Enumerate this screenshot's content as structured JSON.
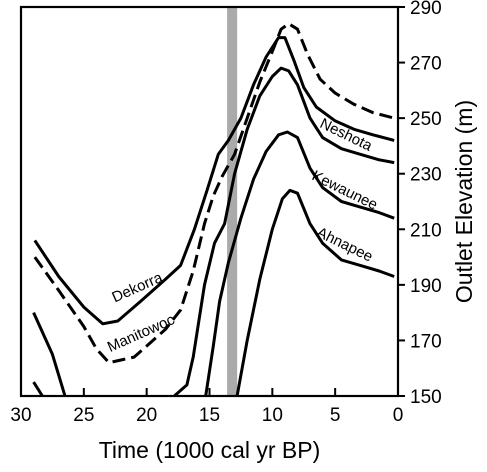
{
  "chart_data": {
    "type": "line",
    "xlabel": "Time (1000 cal yr BP)",
    "ylabel": "Outlet Elevation (m)",
    "xlim": [
      30,
      0
    ],
    "ylim": [
      150,
      290
    ],
    "xticks": [
      "30",
      "25",
      "20",
      "15",
      "10",
      "5",
      "0"
    ],
    "yticks": [
      "150",
      "170",
      "190",
      "210",
      "230",
      "250",
      "270",
      "290"
    ],
    "shaded_band": {
      "from": 13.6,
      "to": 12.8,
      "color": "#aaaaaa"
    },
    "series": [
      {
        "name": "Dekorra",
        "style": "solid",
        "points": [
          [
            28.9,
            206
          ],
          [
            27,
            193
          ],
          [
            25,
            182
          ],
          [
            23.5,
            176
          ],
          [
            22.3,
            177
          ],
          [
            20.5,
            184
          ],
          [
            18.5,
            192
          ],
          [
            17.3,
            197
          ],
          [
            16.2,
            210
          ],
          [
            15.2,
            224
          ],
          [
            14.3,
            237
          ],
          [
            13.5,
            242
          ],
          [
            12.5,
            250
          ],
          [
            11.5,
            262
          ],
          [
            10.5,
            272
          ],
          [
            9.5,
            279
          ],
          [
            9,
            279
          ],
          [
            8.3,
            271
          ],
          [
            7.5,
            261
          ],
          [
            6.5,
            254
          ],
          [
            5,
            249
          ],
          [
            3.5,
            246
          ],
          [
            2,
            244
          ],
          [
            0.3,
            242
          ]
        ]
      },
      {
        "name": "Manitowoc",
        "style": "dashed",
        "points": [
          [
            28.9,
            200
          ],
          [
            27,
            188
          ],
          [
            25,
            175
          ],
          [
            24,
            167
          ],
          [
            23,
            162
          ],
          [
            22,
            163
          ],
          [
            21,
            164
          ],
          [
            20,
            168
          ],
          [
            18.5,
            174
          ],
          [
            17.3,
            181
          ],
          [
            16.3,
            195
          ],
          [
            15.4,
            212
          ],
          [
            14.7,
            222
          ],
          [
            14,
            229
          ],
          [
            13,
            237
          ],
          [
            12,
            250
          ],
          [
            11,
            263
          ],
          [
            10,
            274
          ],
          [
            9.3,
            282
          ],
          [
            8.7,
            284
          ],
          [
            8,
            282
          ],
          [
            7.2,
            273
          ],
          [
            6.2,
            264
          ],
          [
            5,
            259
          ],
          [
            3.5,
            255
          ],
          [
            2,
            252
          ],
          [
            0.3,
            250
          ]
        ]
      },
      {
        "name": "Neshota",
        "style": "solid",
        "points": [
          [
            29,
            155
          ],
          [
            28.3,
            150
          ]
        ]
      },
      {
        "name": "",
        "style": "solid",
        "points": [
          [
            29,
            180
          ],
          [
            27.5,
            165
          ],
          [
            26.5,
            150
          ]
        ]
      },
      {
        "name": "",
        "style": "solid",
        "points": [
          [
            17.8,
            150
          ],
          [
            16.8,
            154
          ],
          [
            16.3,
            164
          ],
          [
            15.4,
            190
          ],
          [
            14.6,
            205
          ],
          [
            13.8,
            212
          ],
          [
            13,
            230
          ],
          [
            12,
            246
          ],
          [
            11,
            258
          ],
          [
            10,
            265
          ],
          [
            9.3,
            268
          ],
          [
            8.7,
            267
          ],
          [
            8,
            262
          ],
          [
            7,
            250
          ],
          [
            6,
            243
          ],
          [
            4.5,
            239
          ],
          [
            3,
            237
          ],
          [
            1.5,
            235
          ],
          [
            0.3,
            234
          ]
        ]
      },
      {
        "name": "Kewaunee",
        "style": "solid",
        "points": [
          [
            15.3,
            150
          ],
          [
            14.7,
            168
          ],
          [
            14.2,
            184
          ],
          [
            13.5,
            198
          ],
          [
            12.5,
            214
          ],
          [
            11.5,
            228
          ],
          [
            10.5,
            238
          ],
          [
            9.5,
            244
          ],
          [
            8.8,
            245
          ],
          [
            8,
            243
          ],
          [
            7,
            232
          ],
          [
            6,
            225
          ],
          [
            4.5,
            220
          ],
          [
            3,
            218
          ],
          [
            1.5,
            216
          ],
          [
            0.3,
            214
          ]
        ]
      },
      {
        "name": "Ahnapee",
        "style": "solid",
        "points": [
          [
            12.8,
            150
          ],
          [
            12,
            170
          ],
          [
            11,
            192
          ],
          [
            10,
            210
          ],
          [
            9.2,
            221
          ],
          [
            8.6,
            224
          ],
          [
            8,
            223
          ],
          [
            7,
            212
          ],
          [
            6,
            205
          ],
          [
            4.5,
            199
          ],
          [
            3,
            197
          ],
          [
            1.5,
            195
          ],
          [
            0.3,
            193
          ]
        ]
      }
    ],
    "curve_labels": [
      {
        "text": "Dekorra",
        "x": 20.6,
        "y": 187.5,
        "angle": -24
      },
      {
        "text": "Manitowoc",
        "x": 20.3,
        "y": 171,
        "angle": -24
      },
      {
        "text": "Neshota",
        "x": 4.3,
        "y": 242.5,
        "angle": 26
      },
      {
        "text": "Kewaunee",
        "x": 4.4,
        "y": 222.5,
        "angle": 26
      },
      {
        "text": "Ahnapee",
        "x": 4.4,
        "y": 203,
        "angle": 26
      }
    ]
  }
}
